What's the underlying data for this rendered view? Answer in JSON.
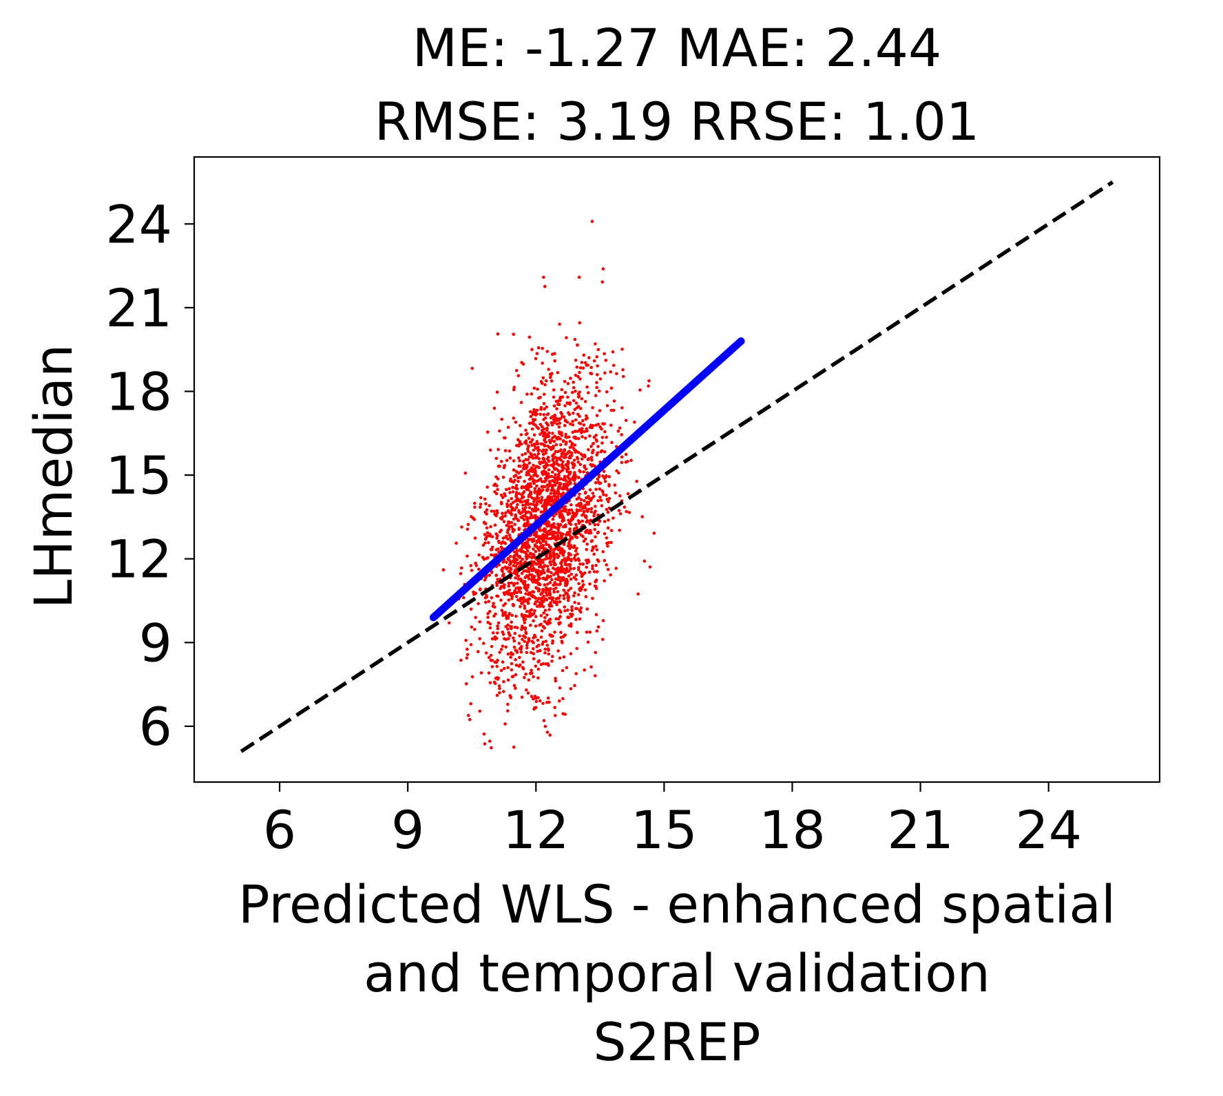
{
  "chart_data": {
    "type": "scatter",
    "title_lines": [
      "ME: -1.27 MAE: 2.44",
      "RMSE: 3.19 RRSE: 1.01"
    ],
    "xlabel_lines": [
      "Predicted WLS - enhanced spatial",
      "and temporal validation",
      "S2REP"
    ],
    "ylabel": "LHmedian",
    "xlim": [
      4.0,
      26.6
    ],
    "ylim": [
      4.0,
      26.4
    ],
    "x_ticks": [
      6,
      9,
      12,
      15,
      18,
      21,
      24
    ],
    "x_tick_labels": [
      "6",
      "9",
      "12",
      "15",
      "18",
      "21",
      "24"
    ],
    "y_ticks": [
      6,
      9,
      12,
      15,
      18,
      21,
      24
    ],
    "y_tick_labels": [
      "6",
      "9",
      "12",
      "15",
      "18",
      "21",
      "24"
    ],
    "grid": false,
    "scatter": {
      "color": "#ff0000",
      "n_points": 2600,
      "center_x": 12.2,
      "sd_x": 0.75,
      "center_y": 13.0,
      "sd_y": 2.6,
      "y_on_x_slope": 1.4,
      "x_range": [
        9.8,
        15.6
      ],
      "y_range": [
        5.2,
        25.4
      ]
    },
    "fit_line": {
      "color": "#0000ff",
      "x": [
        9.6,
        16.8
      ],
      "y": [
        9.9,
        19.8
      ]
    },
    "reference_line": {
      "color": "#000000",
      "style": "dashed",
      "x": [
        5.1,
        25.5
      ],
      "y": [
        5.1,
        25.5
      ]
    }
  }
}
